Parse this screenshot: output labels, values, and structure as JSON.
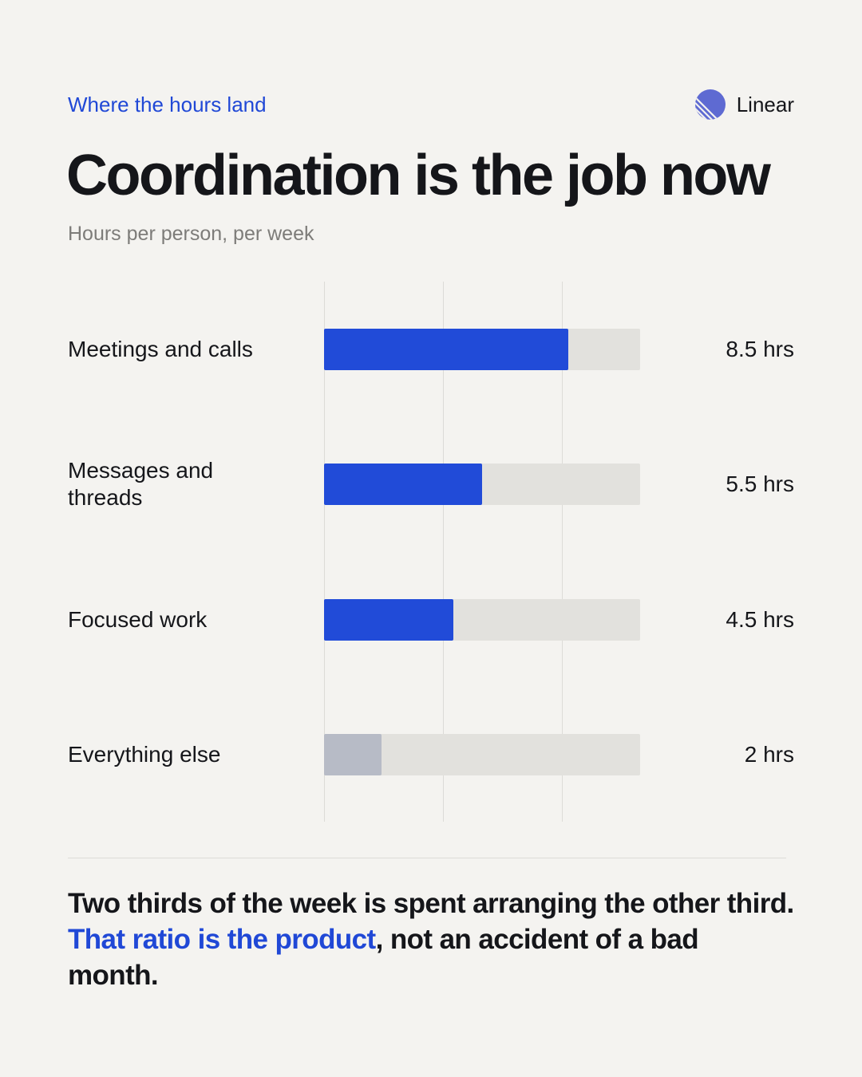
{
  "header": {
    "eyebrow": "Where the hours land",
    "brand_name": "Linear",
    "brand_icon": "linear-logo-icon",
    "title": "Coordination is the job now",
    "subtitle": "Hours per person, per week"
  },
  "chart_data": {
    "type": "bar",
    "orientation": "horizontal",
    "title": "Coordination is the job now",
    "subtitle": "Hours per person, per week",
    "categories": [
      "Meetings and calls",
      "Messages and threads",
      "Focused work",
      "Everything else"
    ],
    "values": [
      8.5,
      5.5,
      4.5,
      2
    ],
    "value_labels": [
      "8.5 hrs",
      "5.5 hrs",
      "4.5 hrs",
      "2 hrs"
    ],
    "xlim": [
      0,
      11
    ],
    "grid": true,
    "colors": {
      "primary": "#214bd8",
      "muted": "#b7bbc6",
      "track": "#e2e1dd",
      "gridline": "#dcdbd7"
    },
    "highlight": [
      true,
      true,
      true,
      false
    ]
  },
  "footer": {
    "text_before": "Two thirds of the week is spent arranging the other third. ",
    "text_highlight": "That ratio is the product",
    "text_after": ", not an accident of a bad month."
  }
}
